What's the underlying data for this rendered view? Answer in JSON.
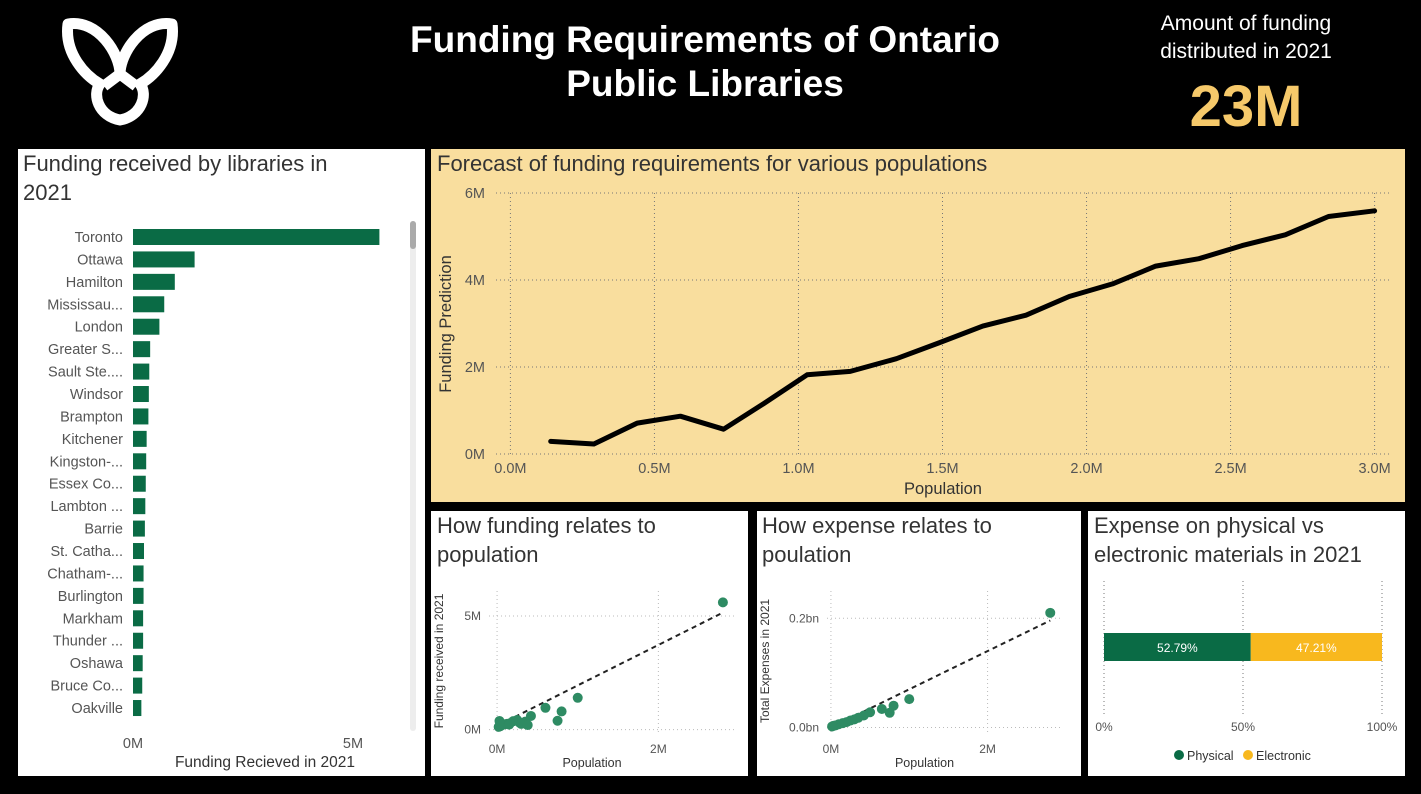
{
  "header": {
    "title_line1": "Funding Requirements of Ontario",
    "title_line2": "Public Libraries",
    "kpi_label_line1": "Amount of funding",
    "kpi_label_line2": "distributed in 2021",
    "kpi_value": "23M",
    "kpi_color": "#f6c96a"
  },
  "logo": {
    "icon": "ontario-trillium-logo-icon",
    "color": "#ffffff"
  },
  "colors": {
    "green": "#0a6b45",
    "orange": "#f8b81e",
    "forecast_bg": "#f9de9e",
    "scatter": "#2e8b63"
  },
  "chart_data": [
    {
      "id": "bar",
      "type": "bar",
      "orientation": "horizontal",
      "title_line1": "Funding received by libraries in",
      "title_line2": "2021",
      "xlabel": "Funding Recieved in 2021",
      "xlim": [
        0,
        6000000
      ],
      "xticks": [
        {
          "v": 0,
          "label": "0M"
        },
        {
          "v": 5000000,
          "label": "5M"
        }
      ],
      "categories": [
        "Toronto",
        "Ottawa",
        "Hamilton",
        "Mississau...",
        "London",
        "Greater S...",
        "Sault Ste....",
        "Windsor",
        "Brampton",
        "Kitchener",
        "Kingston-...",
        "Essex Co...",
        "Lambton ...",
        "Barrie",
        "St. Catha...",
        "Chatham-...",
        "Burlington",
        "Markham",
        "Thunder ...",
        "Oshawa",
        "Bruce Co...",
        "Oakville"
      ],
      "values": [
        5600000,
        1400000,
        950000,
        710000,
        600000,
        390000,
        370000,
        360000,
        350000,
        310000,
        300000,
        290000,
        280000,
        270000,
        250000,
        240000,
        240000,
        230000,
        230000,
        220000,
        210000,
        190000
      ]
    },
    {
      "id": "forecast",
      "type": "line",
      "title": "Forecast of funding requirements for various populations",
      "xlabel": "Population",
      "ylabel": "Funding Prediction",
      "xlim": [
        -50000,
        3050000
      ],
      "ylim": [
        0,
        6000000
      ],
      "grid": true,
      "xticks": [
        {
          "v": 0,
          "label": "0.0M"
        },
        {
          "v": 500000,
          "label": "0.5M"
        },
        {
          "v": 1000000,
          "label": "1.0M"
        },
        {
          "v": 1500000,
          "label": "1.5M"
        },
        {
          "v": 2000000,
          "label": "2.0M"
        },
        {
          "v": 2500000,
          "label": "2.5M"
        },
        {
          "v": 3000000,
          "label": "3.0M"
        }
      ],
      "yticks": [
        {
          "v": 0,
          "label": "0M"
        },
        {
          "v": 2000000,
          "label": "2M"
        },
        {
          "v": 4000000,
          "label": "4M"
        },
        {
          "v": 6000000,
          "label": "6M"
        }
      ],
      "x": [
        140000,
        290000,
        440000,
        590000,
        740000,
        880000,
        1030000,
        1180000,
        1340000,
        1490000,
        1640000,
        1790000,
        1940000,
        2090000,
        2240000,
        2390000,
        2540000,
        2690000,
        2840000,
        3000000
      ],
      "y": [
        290000,
        230000,
        710000,
        870000,
        570000,
        1160000,
        1820000,
        1900000,
        2190000,
        2560000,
        2940000,
        3190000,
        3620000,
        3910000,
        4320000,
        4490000,
        4790000,
        5040000,
        5460000,
        5590000
      ]
    },
    {
      "id": "sc1",
      "type": "scatter",
      "title_line1": "How funding relates to",
      "title_line2": "population",
      "xlabel": "Population",
      "ylabel": "Funding received in 2021",
      "xlim": [
        -100000,
        2950000
      ],
      "ylim": [
        -150000,
        6100000
      ],
      "grid": true,
      "xticks": [
        {
          "v": 0,
          "label": "0M"
        },
        {
          "v": 2000000,
          "label": "2M"
        }
      ],
      "yticks": [
        {
          "v": 0,
          "label": "0M"
        },
        {
          "v": 5000000,
          "label": "5M"
        }
      ],
      "trend": [
        [
          20000,
          200000
        ],
        [
          2800000,
          5150000
        ]
      ],
      "x": [
        2800000,
        1000000,
        800000,
        600000,
        750000,
        420000,
        350000,
        280000,
        250000,
        200000,
        160000,
        120000,
        90000,
        60000,
        40000,
        20000,
        30000,
        150000,
        300000,
        380000
      ],
      "y": [
        5600000,
        1400000,
        800000,
        960000,
        390000,
        600000,
        350000,
        300000,
        420000,
        370000,
        280000,
        250000,
        230000,
        200000,
        150000,
        120000,
        380000,
        220000,
        250000,
        200000
      ]
    },
    {
      "id": "sc2",
      "type": "scatter",
      "title_line1": "How expense relates to",
      "title_line2": "poulation",
      "xlabel": "Population",
      "ylabel": "Total Expenses in 2021",
      "xlim": [
        -50000,
        2950000
      ],
      "ylim": [
        -10000000,
        250000000
      ],
      "grid": true,
      "xticks": [
        {
          "v": 0,
          "label": "0M"
        },
        {
          "v": 2000000,
          "label": "2M"
        }
      ],
      "yticks": [
        {
          "v": 0,
          "label": "0.0bn"
        },
        {
          "v": 200000000,
          "label": "0.2bn"
        }
      ],
      "trend": [
        [
          0,
          0
        ],
        [
          2800000,
          196000000
        ]
      ],
      "x": [
        2800000,
        1000000,
        800000,
        650000,
        750000,
        500000,
        420000,
        350000,
        300000,
        250000,
        200000,
        150000,
        100000,
        60000,
        30000,
        15000
      ],
      "y": [
        210000000,
        52000000,
        40000000,
        34000000,
        27000000,
        28000000,
        22000000,
        18000000,
        15000000,
        13000000,
        10000000,
        8000000,
        6000000,
        4000000,
        3000000,
        2000000
      ]
    },
    {
      "id": "stack",
      "type": "bar",
      "orientation": "horizontal",
      "stacked": "100%",
      "title_line1": "Expense on physical vs",
      "title_line2": "electronic materials in 2021",
      "xlim": [
        0,
        100
      ],
      "xticks": [
        {
          "v": 0,
          "label": "0%"
        },
        {
          "v": 50,
          "label": "50%"
        },
        {
          "v": 100,
          "label": "100%"
        }
      ],
      "legend_position": "bottom",
      "series": [
        {
          "name": "Physical",
          "values": [
            52.79
          ],
          "label": "52.79%"
        },
        {
          "name": "Electronic",
          "values": [
            47.21
          ],
          "label": "47.21%"
        }
      ]
    }
  ]
}
